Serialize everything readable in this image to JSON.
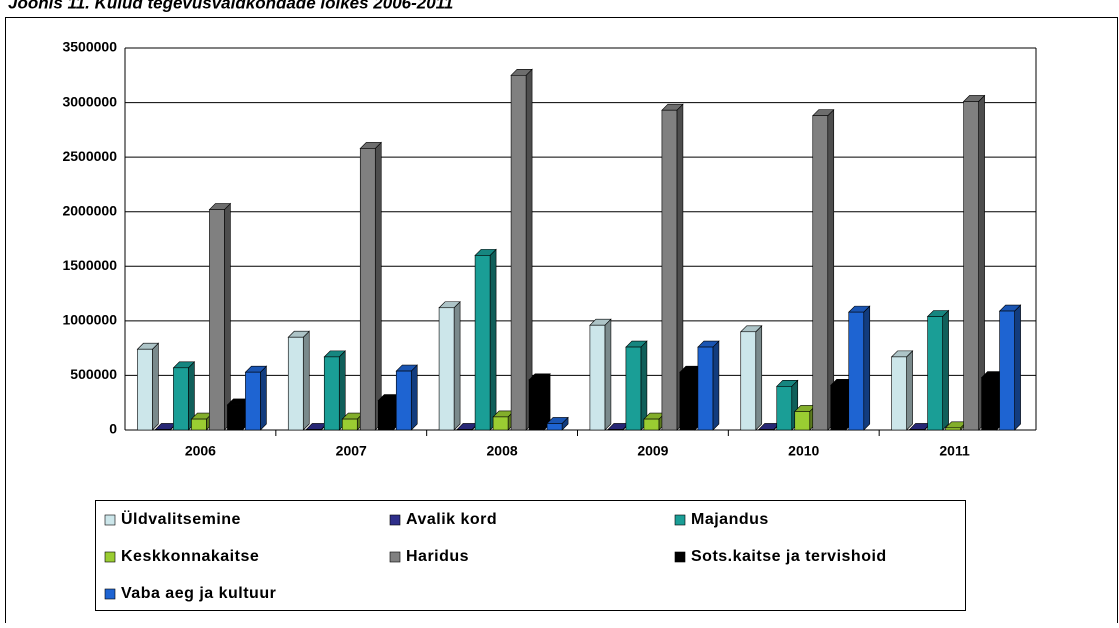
{
  "chart_data": {
    "type": "bar",
    "title": "Joonis 11. Kulud tegevusvaldkondade lõikes 2006-2011",
    "categories": [
      "2006",
      "2007",
      "2008",
      "2009",
      "2010",
      "2011"
    ],
    "series": [
      {
        "name": "Üldvalitsemine",
        "color": "#cce6ea",
        "values": [
          740000,
          850000,
          1120000,
          960000,
          900000,
          670000
        ]
      },
      {
        "name": "Avalik kord",
        "color": "#2e2e8a",
        "values": [
          5000,
          5000,
          5000,
          5000,
          5000,
          5000
        ]
      },
      {
        "name": "Majandus",
        "color": "#1a9e96",
        "values": [
          570000,
          670000,
          1600000,
          760000,
          400000,
          1040000
        ]
      },
      {
        "name": "Keskkonnakaitse",
        "color": "#9acd32",
        "values": [
          100000,
          100000,
          120000,
          100000,
          170000,
          20000
        ]
      },
      {
        "name": "Haridus",
        "color": "#808080",
        "values": [
          2020000,
          2580000,
          3250000,
          2930000,
          2880000,
          3010000
        ]
      },
      {
        "name": "Sots.kaitse ja tervishoid",
        "color": "#000000",
        "values": [
          230000,
          270000,
          460000,
          530000,
          410000,
          480000
        ]
      },
      {
        "name": "Vaba aeg ja kultuur",
        "color": "#1e64d2",
        "values": [
          530000,
          540000,
          60000,
          760000,
          1080000,
          1090000
        ]
      }
    ],
    "ylim": [
      0,
      3500000
    ],
    "yticks": [
      0,
      500000,
      1000000,
      1500000,
      2000000,
      2500000,
      3000000,
      3500000
    ],
    "grid": true
  }
}
